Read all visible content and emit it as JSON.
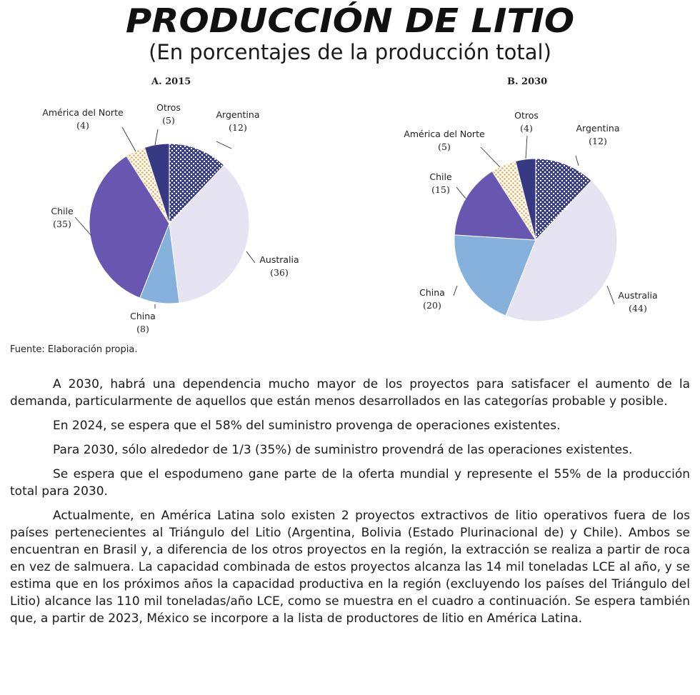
{
  "header": {
    "title": "PRODUCCIÓN DE LITIO",
    "subtitle": "(En porcentajes de la producción total)"
  },
  "colors": {
    "Argentina": "#3b3f8f",
    "Australia": "#e6e3f2",
    "China": "#86b1dd",
    "Chile": "#6857b0",
    "América del Norte": "#f2c983",
    "Otros": "#363a82"
  },
  "chart_data": [
    {
      "type": "pie",
      "title": "A. 2015",
      "labels": [
        "Argentina",
        "Australia",
        "China",
        "Chile",
        "América del Norte",
        "Otros"
      ],
      "values": [
        12,
        36,
        8,
        35,
        4,
        5
      ],
      "value_labels": [
        "(12)",
        "(36)",
        "(8)",
        "(35)",
        "(4)",
        "(5)"
      ]
    },
    {
      "type": "pie",
      "title": "B. 2030",
      "labels": [
        "Argentina",
        "Australia",
        "China",
        "Chile",
        "América del Norte",
        "Otros"
      ],
      "values": [
        12,
        44,
        20,
        15,
        5,
        4
      ],
      "value_labels": [
        "(12)",
        "(44)",
        "(20)",
        "(15)",
        "(5)",
        "(4)"
      ]
    }
  ],
  "source": "Fuente: Elaboración propia.",
  "paragraphs": [
    "A 2030, habrá una dependencia mucho mayor de los proyectos para satisfacer el aumento de la demanda, particularmente de aquellos que están menos desarrollados en las categorías probable y posible.",
    "En 2024, se espera que el 58% del suministro provenga de operaciones existentes.",
    "Para 2030, sólo alrededor de 1/3 (35%) de suministro provendrá de las operaciones existentes.",
    "Se espera que el espodumeno gane parte de la oferta mundial y represente el 55% de la producción total para 2030.",
    "Actualmente, en América Latina solo existen 2 proyectos extractivos de litio operativos fuera de los países pertenecientes al Triángulo del Litio (Argentina, Bolivia (Estado Plurinacional de) y Chile). Ambos se encuentran en Brasil y, a diferencia de los otros proyectos en la región, la extracción se realiza a partir de roca en vez de salmuera. La capacidad combinada de estos proyectos alcanza las 14 mil toneladas LCE al año, y se estima que en los próximos años la capacidad productiva en la región (excluyendo los países del Triángulo del Litio) alcance las 110 mil toneladas/año LCE, como se muestra en el cuadro a continuación. Se espera también que, a partir de 2023, México se incorpore a la lista de productores de litio en América Latina."
  ]
}
